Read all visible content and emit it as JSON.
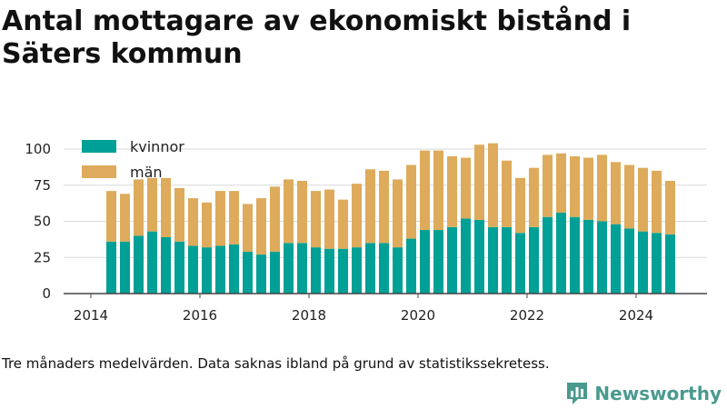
{
  "title": "Antal mottagare av ekonomiskt bistånd i Säters kommun",
  "note": "Tre månaders medelvärden. Data saknas ibland på grund av statistikssekretess.",
  "brand": {
    "name": "Newsworthy",
    "icon": "bar-chart-logo-icon",
    "color": "#4a9a8f"
  },
  "chart_data": {
    "type": "bar",
    "stacked": true,
    "x_unit": "quarter",
    "x": [
      "2014-Q2",
      "2014-Q3",
      "2014-Q4",
      "2015-Q1",
      "2015-Q2",
      "2015-Q3",
      "2015-Q4",
      "2016-Q1",
      "2016-Q2",
      "2016-Q3",
      "2016-Q4",
      "2017-Q1",
      "2017-Q2",
      "2017-Q3",
      "2017-Q4",
      "2018-Q1",
      "2018-Q2",
      "2018-Q3",
      "2018-Q4",
      "2019-Q1",
      "2019-Q2",
      "2019-Q3",
      "2019-Q4",
      "2020-Q1",
      "2020-Q2",
      "2020-Q3",
      "2020-Q4",
      "2021-Q1",
      "2021-Q2",
      "2021-Q3",
      "2021-Q4",
      "2022-Q1",
      "2022-Q2",
      "2022-Q3",
      "2022-Q4",
      "2023-Q1",
      "2023-Q2",
      "2023-Q3",
      "2023-Q4",
      "2024-Q1",
      "2024-Q2",
      "2024-Q3"
    ],
    "series": [
      {
        "name": "kvinnor",
        "color": "#00a096",
        "values": [
          36,
          36,
          40,
          43,
          39,
          36,
          33,
          32,
          33,
          34,
          29,
          27,
          29,
          35,
          35,
          32,
          31,
          31,
          32,
          35,
          35,
          32,
          38,
          44,
          44,
          46,
          52,
          51,
          46,
          46,
          42,
          46,
          53,
          56,
          53,
          51,
          50,
          48,
          45,
          43,
          42,
          41
        ]
      },
      {
        "name": "män",
        "color": "#ddab5b",
        "values": [
          35,
          33,
          39,
          37,
          41,
          37,
          33,
          31,
          38,
          37,
          33,
          39,
          45,
          44,
          43,
          39,
          41,
          34,
          44,
          51,
          50,
          47,
          51,
          55,
          55,
          49,
          42,
          52,
          58,
          46,
          38,
          41,
          43,
          41,
          42,
          43,
          46,
          43,
          44,
          44,
          43,
          37
        ]
      }
    ],
    "xlabel": "",
    "ylabel": "",
    "x_ticks": [
      "2014",
      "2016",
      "2018",
      "2020",
      "2022",
      "2024"
    ],
    "ylim": [
      0,
      110
    ],
    "y_ticks": [
      0,
      25,
      50,
      75,
      100
    ],
    "grid": "horizontal",
    "legend": "top-left"
  }
}
